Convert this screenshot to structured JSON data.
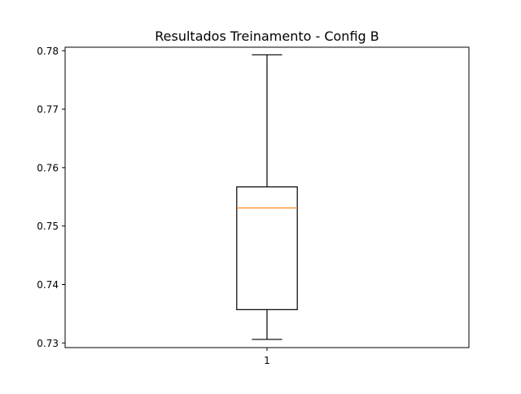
{
  "chart_data": {
    "type": "box",
    "title": "Resultados Treinamento - Config B",
    "xlabel": "",
    "ylabel": "",
    "categories": [
      "1"
    ],
    "ylim": [
      0.7292,
      0.7806
    ],
    "yticks": [
      0.73,
      0.74,
      0.75,
      0.76,
      0.77,
      0.78
    ],
    "ytick_labels": [
      "0.73",
      "0.74",
      "0.75",
      "0.76",
      "0.77",
      "0.78"
    ],
    "boxes": [
      {
        "category": "1",
        "whisker_low": 0.7306,
        "q1": 0.7357,
        "median": 0.7531,
        "q3": 0.7567,
        "whisker_high": 0.7793
      }
    ],
    "grid": false,
    "colors": {
      "box": "#000000",
      "median": "#ff7f0e",
      "axes": "#000000"
    }
  }
}
